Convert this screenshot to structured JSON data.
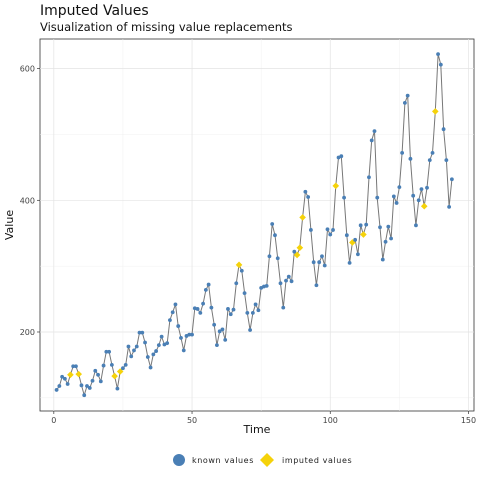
{
  "chart_data": {
    "type": "line",
    "title": "Imputed Values",
    "subtitle": "Visualization of missing value replacements",
    "xlabel": "Time",
    "ylabel": "Value",
    "xlim": [
      -5,
      152
    ],
    "ylim": [
      80,
      645
    ],
    "xticks": [
      0,
      50,
      100,
      150
    ],
    "yticks": [
      200,
      400,
      600
    ],
    "grid": true,
    "legend_position": "bottom",
    "series": [
      {
        "name": "known values",
        "color": "#4A7FB5",
        "line_color": "#777777"
      },
      {
        "name": "imputed values",
        "color": "#F5D20A"
      }
    ],
    "x": [
      1,
      2,
      3,
      4,
      5,
      6,
      7,
      8,
      9,
      10,
      11,
      12,
      13,
      14,
      15,
      16,
      17,
      18,
      19,
      20,
      21,
      22,
      23,
      24,
      25,
      26,
      27,
      28,
      29,
      30,
      31,
      32,
      33,
      34,
      35,
      36,
      37,
      38,
      39,
      40,
      41,
      42,
      43,
      44,
      45,
      46,
      47,
      48,
      49,
      50,
      51,
      52,
      53,
      54,
      55,
      56,
      57,
      58,
      59,
      60,
      61,
      62,
      63,
      64,
      65,
      66,
      67,
      68,
      69,
      70,
      71,
      72,
      73,
      74,
      75,
      76,
      77,
      78,
      79,
      80,
      81,
      82,
      83,
      84,
      85,
      86,
      87,
      88,
      89,
      90,
      91,
      92,
      93,
      94,
      95,
      96,
      97,
      98,
      99,
      100,
      101,
      102,
      103,
      104,
      105,
      106,
      107,
      108,
      109,
      110,
      111,
      112,
      113,
      114,
      115,
      116,
      117,
      118,
      119,
      120,
      121,
      122,
      123,
      124,
      125,
      126,
      127,
      128,
      129,
      130,
      131,
      132,
      133,
      134,
      135,
      136,
      137,
      138,
      139,
      140,
      141,
      142,
      143,
      144
    ],
    "values": [
      112,
      118,
      132,
      129,
      121,
      135,
      148,
      148,
      136,
      119,
      104,
      118,
      115,
      126,
      141,
      135,
      125,
      149,
      170,
      170,
      150,
      133,
      114,
      140,
      145,
      150,
      178,
      163,
      172,
      178,
      199,
      199,
      184,
      162,
      146,
      166,
      171,
      180,
      193,
      181,
      183,
      218,
      230,
      242,
      209,
      191,
      172,
      194,
      196,
      196,
      236,
      235,
      229,
      243,
      264,
      272,
      237,
      211,
      180,
      201,
      204,
      188,
      235,
      227,
      234,
      274,
      302,
      293,
      259,
      229,
      203,
      229,
      242,
      233,
      267,
      269,
      270,
      315,
      364,
      347,
      312,
      274,
      237,
      278,
      284,
      277,
      322,
      317,
      328,
      374,
      413,
      405,
      355,
      306,
      271,
      306,
      315,
      301,
      356,
      348,
      355,
      422,
      465,
      467,
      404,
      347,
      305,
      336,
      340,
      318,
      362,
      348,
      363,
      435,
      491,
      505,
      404,
      359,
      310,
      337,
      360,
      342,
      406,
      396,
      420,
      472,
      548,
      559,
      463,
      407,
      362,
      400,
      417,
      391,
      419,
      461,
      472,
      535,
      622,
      606,
      508,
      461,
      390,
      432
    ],
    "imputed_indices": [
      5,
      8,
      21,
      23,
      66,
      87,
      88,
      89,
      101,
      107,
      111,
      133,
      137
    ]
  }
}
